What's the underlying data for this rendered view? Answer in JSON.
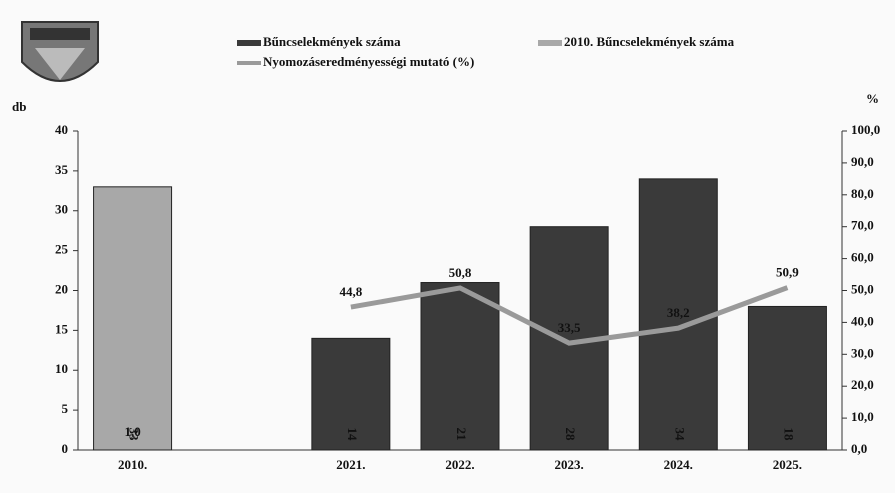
{
  "chart_data": {
    "type": "bar",
    "categories": [
      "2010.",
      null,
      "2021.",
      "2022.",
      "2023.",
      "2024.",
      "2025."
    ],
    "ylabel": "db",
    "y2label": "%",
    "ylim": [
      0,
      40
    ],
    "yticks": [
      0,
      5,
      10,
      15,
      20,
      25,
      30,
      35,
      40
    ],
    "y2lim": [
      0,
      100
    ],
    "y2ticks": [
      {
        "value": 0,
        "label": "0,0"
      },
      {
        "value": 10,
        "label": "10,0"
      },
      {
        "value": 20,
        "label": "20,0"
      },
      {
        "value": 30,
        "label": "30,0"
      },
      {
        "value": 40,
        "label": "40,0"
      },
      {
        "value": 50,
        "label": "50,0"
      },
      {
        "value": 60,
        "label": "60,0"
      },
      {
        "value": 70,
        "label": "70,0"
      },
      {
        "value": 80,
        "label": "80,0"
      },
      {
        "value": 90,
        "label": "90,0"
      },
      {
        "value": 100,
        "label": "100,0"
      }
    ],
    "series": [
      {
        "name": "Bűncselekmények száma",
        "color": "#3a3a3a",
        "values": [
          null,
          null,
          14,
          21,
          28,
          34,
          18
        ]
      },
      {
        "name": "2010. Bűncselekmények száma",
        "color": "#a8a8a8",
        "values": [
          33,
          null,
          null,
          null,
          null,
          null,
          null
        ]
      },
      {
        "name": "Nyomozáseredményességi mutató (%)",
        "color": "#9a9a9a",
        "type": "line",
        "axis": "y2",
        "values": [
          1.0,
          null,
          44.8,
          50.8,
          33.5,
          38.2,
          50.9
        ],
        "value_labels": [
          "1,0",
          null,
          "44,8",
          "50,8",
          "33,5",
          "38,2",
          "50,9"
        ]
      }
    ]
  }
}
